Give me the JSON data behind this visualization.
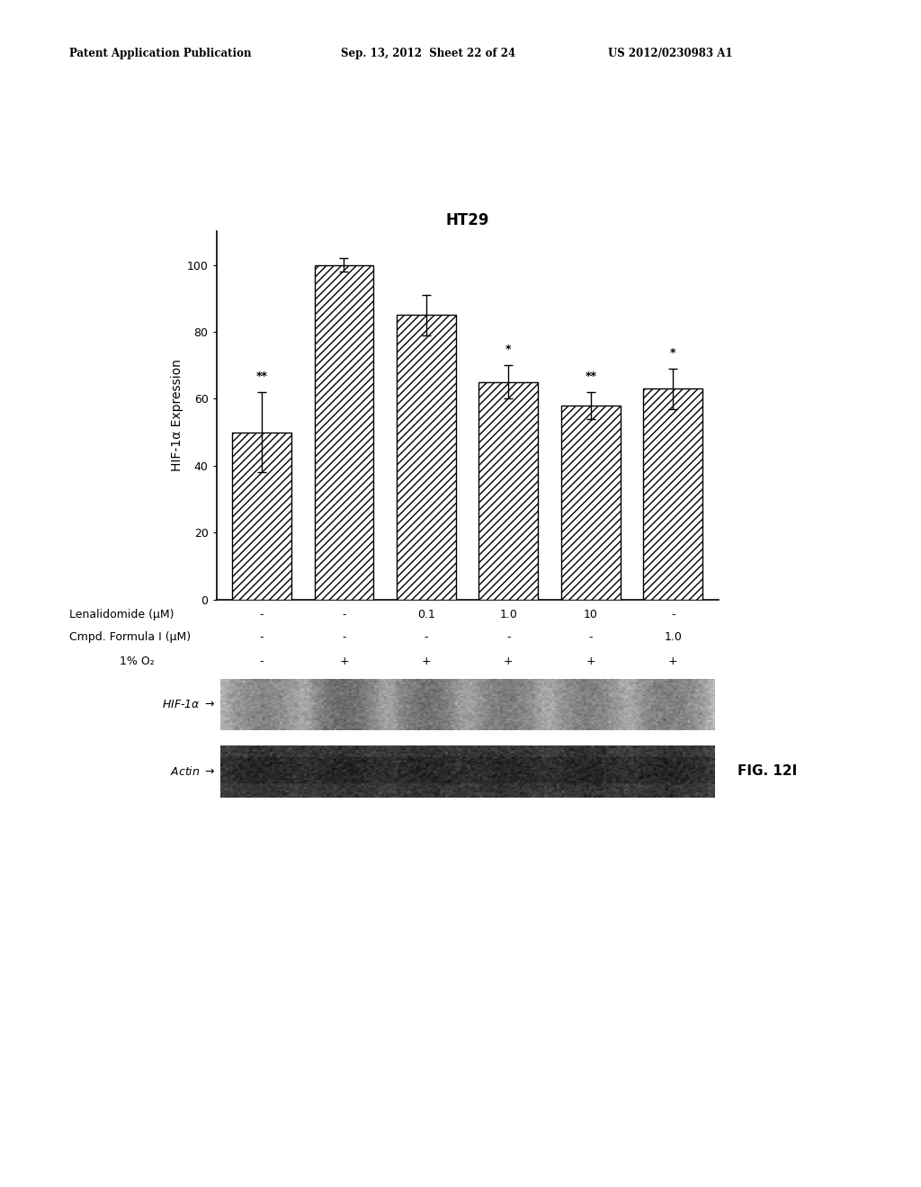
{
  "title": "HT29",
  "ylabel": "HIF-1α Expression",
  "bar_values": [
    50,
    100,
    85,
    65,
    58,
    63
  ],
  "bar_errors": [
    12,
    2,
    6,
    5,
    4,
    6
  ],
  "ylim": [
    0,
    110
  ],
  "yticks": [
    0,
    20,
    40,
    60,
    80,
    100
  ],
  "significance": [
    "**",
    "",
    "",
    "*",
    "**",
    "*"
  ],
  "lenalidomide_row": [
    "-",
    "-",
    "0.1",
    "1.0",
    "10",
    "-"
  ],
  "cmpd_row": [
    "-",
    "-",
    "-",
    "-",
    "-",
    "1.0"
  ],
  "o2_row": [
    "-",
    "+",
    "+",
    "+",
    "+",
    "+"
  ],
  "fig_label": "FIG. 12I",
  "header_left": "Patent Application Publication",
  "header_mid": "Sep. 13, 2012  Sheet 22 of 24",
  "header_right": "US 2012/0230983 A1",
  "background_color": "#ffffff",
  "hatch_pattern": "////",
  "row_label1": "Lenalidomide (μM)",
  "row_label2": "Cmpd. Formula I (μM)",
  "row_label3": "1% O₂",
  "hif_label": "HIF-1α",
  "actin_label": "Actin",
  "hif_band_color": "#b0b0b0",
  "actin_band_color": "#505050",
  "blot_border_color": "#000000"
}
